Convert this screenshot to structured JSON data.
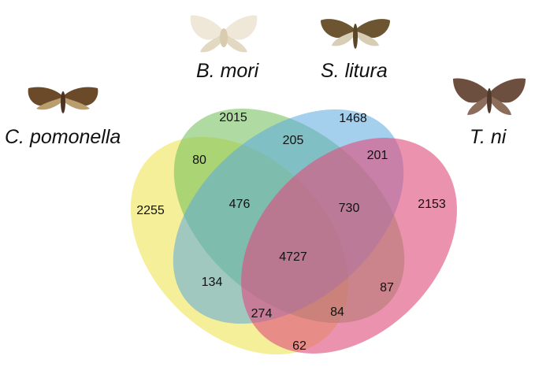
{
  "species": {
    "cpom": {
      "label": "C. pomonella",
      "color": "#f0e456",
      "icon": "moth-icon"
    },
    "bmor": {
      "label": "B. mori",
      "color": "#8bc870",
      "icon": "moth-icon"
    },
    "slit": {
      "label": "S. litura",
      "color": "#7fb8e2",
      "icon": "moth-icon"
    },
    "tni": {
      "label": "T. ni",
      "color": "#e0507f",
      "icon": "moth-icon"
    }
  },
  "counts": {
    "cpom_only": "2255",
    "bmor_only": "2015",
    "slit_only": "1468",
    "tni_only": "2153",
    "cpom_bmor": "80",
    "bmor_slit": "205",
    "slit_tni": "201",
    "cpom_bmor_slit": "476",
    "bmor_slit_tni": "730",
    "all_four": "4727",
    "cpom_slit": "134",
    "bmor_tni": "87",
    "cpom_slit_tni": "274",
    "cpom_bmor_tni": "84",
    "cpom_tni": "62"
  }
}
